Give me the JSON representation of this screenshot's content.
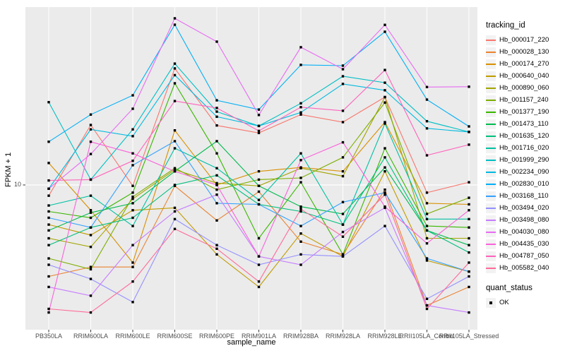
{
  "figure": {
    "panel_bg": "#EBEBEB",
    "grid_color": "#FFFFFF",
    "tick_color": "#333333",
    "axis_text_color": "#4D4D4D",
    "point_color": "#000000"
  },
  "axes": {
    "x_title": "sample_name",
    "y_title": "FPKM + 1",
    "y_tick_label": "10"
  },
  "legend": {
    "tracking_title": "tracking_id",
    "quant_title": "quant_status",
    "quant_items": [
      {
        "label": "OK"
      }
    ]
  },
  "chart_data": {
    "type": "line",
    "title": "",
    "xlabel": "sample_name",
    "ylabel": "FPKM + 1",
    "y_scale": "log10",
    "y_ticks": [
      10
    ],
    "ylim": [
      2.2,
      70
    ],
    "grid": true,
    "legend_position": "right",
    "point_shape": "filled-black-square (quant_status = OK)",
    "x_categories": [
      "PB350LA",
      "RRIM600LA",
      "RRIM600LE",
      "RRIM600SE",
      "RRIM600PE",
      "RRIM901LA",
      "RRIM928BA",
      "RRIM928LA",
      "RRIM928LE",
      "RRII105LA_Control",
      "RRII105LA_Stressed"
    ],
    "series": [
      {
        "name": "Hb_000017_220",
        "color": "#F8766D",
        "values": [
          8.9,
          19.2,
          9.9,
          35.5,
          19.1,
          17.6,
          21.5,
          19.8,
          26.0,
          9.2,
          10.3
        ]
      },
      {
        "name": "Hb_000028_130",
        "color": "#EA8331",
        "values": [
          3.7,
          4.1,
          4.1,
          9.9,
          6.8,
          9.3,
          5.4,
          4.7,
          9.5,
          2.7,
          3.3
        ]
      },
      {
        "name": "Hb_000174_270",
        "color": "#D89000",
        "values": [
          12.7,
          7.6,
          4.3,
          18.1,
          10.0,
          11.6,
          12.1,
          11.6,
          19.8,
          8.2,
          8.1
        ]
      },
      {
        "name": "Hb_000640_040",
        "color": "#C09B00",
        "values": [
          6.5,
          5.8,
          7.6,
          7.8,
          4.7,
          3.3,
          5.9,
          4.6,
          11.6,
          4.4,
          3.9
        ]
      },
      {
        "name": "Hb_000890_060",
        "color": "#A3A500",
        "values": [
          5.6,
          5.1,
          8.6,
          11.8,
          10.2,
          9.9,
          12.0,
          11.0,
          26.0,
          5.6,
          5.6
        ]
      },
      {
        "name": "Hb_001157_240",
        "color": "#7CAE00",
        "values": [
          4.5,
          4.0,
          8.8,
          12.0,
          9.5,
          10.6,
          10.8,
          13.5,
          24.5,
          7.3,
          8.7
        ]
      },
      {
        "name": "Hb_001377_190",
        "color": "#39B600",
        "values": [
          7.5,
          7.0,
          9.2,
          30.2,
          14.1,
          5.6,
          10.3,
          4.7,
          14.9,
          6.4,
          6.3
        ]
      },
      {
        "name": "Hb_001473_110",
        "color": "#00BB4E",
        "values": [
          6.1,
          7.4,
          8.2,
          11.6,
          16.1,
          9.9,
          7.9,
          7.3,
          12.1,
          6.1,
          5.2
        ]
      },
      {
        "name": "Hb_001635_120",
        "color": "#00BF7D",
        "values": [
          5.2,
          6.3,
          7.0,
          10.0,
          11.1,
          8.1,
          7.5,
          6.5,
          13.5,
          6.1,
          4.8
        ]
      },
      {
        "name": "Hb_001716_020",
        "color": "#00C1A3",
        "values": [
          8.0,
          8.9,
          6.4,
          14.9,
          12.0,
          8.5,
          14.1,
          6.5,
          19.5,
          6.9,
          6.9
        ]
      },
      {
        "name": "Hb_001999_290",
        "color": "#00BFC4",
        "values": [
          24.6,
          10.6,
          18.3,
          37.4,
          22.2,
          19.0,
          24.3,
          32.6,
          30.4,
          20.0,
          17.8
        ]
      },
      {
        "name": "Hb_002234_090",
        "color": "#00BAE0",
        "values": [
          9.6,
          18.3,
          17.0,
          33.0,
          21.0,
          19.0,
          22.0,
          30.0,
          28.0,
          18.5,
          17.8
        ]
      },
      {
        "name": "Hb_002830_010",
        "color": "#00B0F6",
        "values": [
          16.0,
          21.5,
          26.5,
          57.1,
          25.1,
          22.7,
          36.9,
          36.6,
          52.9,
          25.3,
          18.9
        ]
      },
      {
        "name": "Hb_003168_110",
        "color": "#35A2FF",
        "values": [
          7.0,
          6.3,
          12.4,
          16.1,
          8.2,
          8.1,
          6.4,
          8.3,
          9.2,
          4.5,
          3.9
        ]
      },
      {
        "name": "Hb_003494_020",
        "color": "#9590FF",
        "values": [
          4.2,
          3.6,
          2.8,
          6.9,
          5.2,
          4.2,
          4.7,
          4.6,
          6.4,
          2.9,
          3.7
        ]
      },
      {
        "name": "Hb_003498_080",
        "color": "#C77CFF",
        "values": [
          3.3,
          3.0,
          5.2,
          7.5,
          9.0,
          4.6,
          4.2,
          6.0,
          7.8,
          2.7,
          2.5
        ]
      },
      {
        "name": "Hb_004030_080",
        "color": "#E76BF3",
        "values": [
          9.6,
          14.0,
          22.9,
          61.2,
          47.5,
          21.4,
          44.7,
          35.2,
          57.0,
          29.0,
          29.1
        ]
      },
      {
        "name": "Hb_004435_030",
        "color": "#FA62DB",
        "values": [
          2.5,
          16.0,
          14.1,
          11.6,
          10.0,
          4.6,
          13.1,
          15.9,
          7.9,
          5.3,
          7.6
        ]
      },
      {
        "name": "Hb_004787_050",
        "color": "#FF62BC",
        "values": [
          10.5,
          10.6,
          13.0,
          24.9,
          23.1,
          18.0,
          23.3,
          22.4,
          34.9,
          13.8,
          15.5
        ]
      },
      {
        "name": "Hb_005582_040",
        "color": "#FF6A98",
        "values": [
          2.6,
          2.5,
          3.5,
          6.2,
          5.0,
          3.5,
          7.7,
          5.7,
          9.0,
          2.6,
          4.3
        ]
      }
    ],
    "quant_status": "OK"
  }
}
